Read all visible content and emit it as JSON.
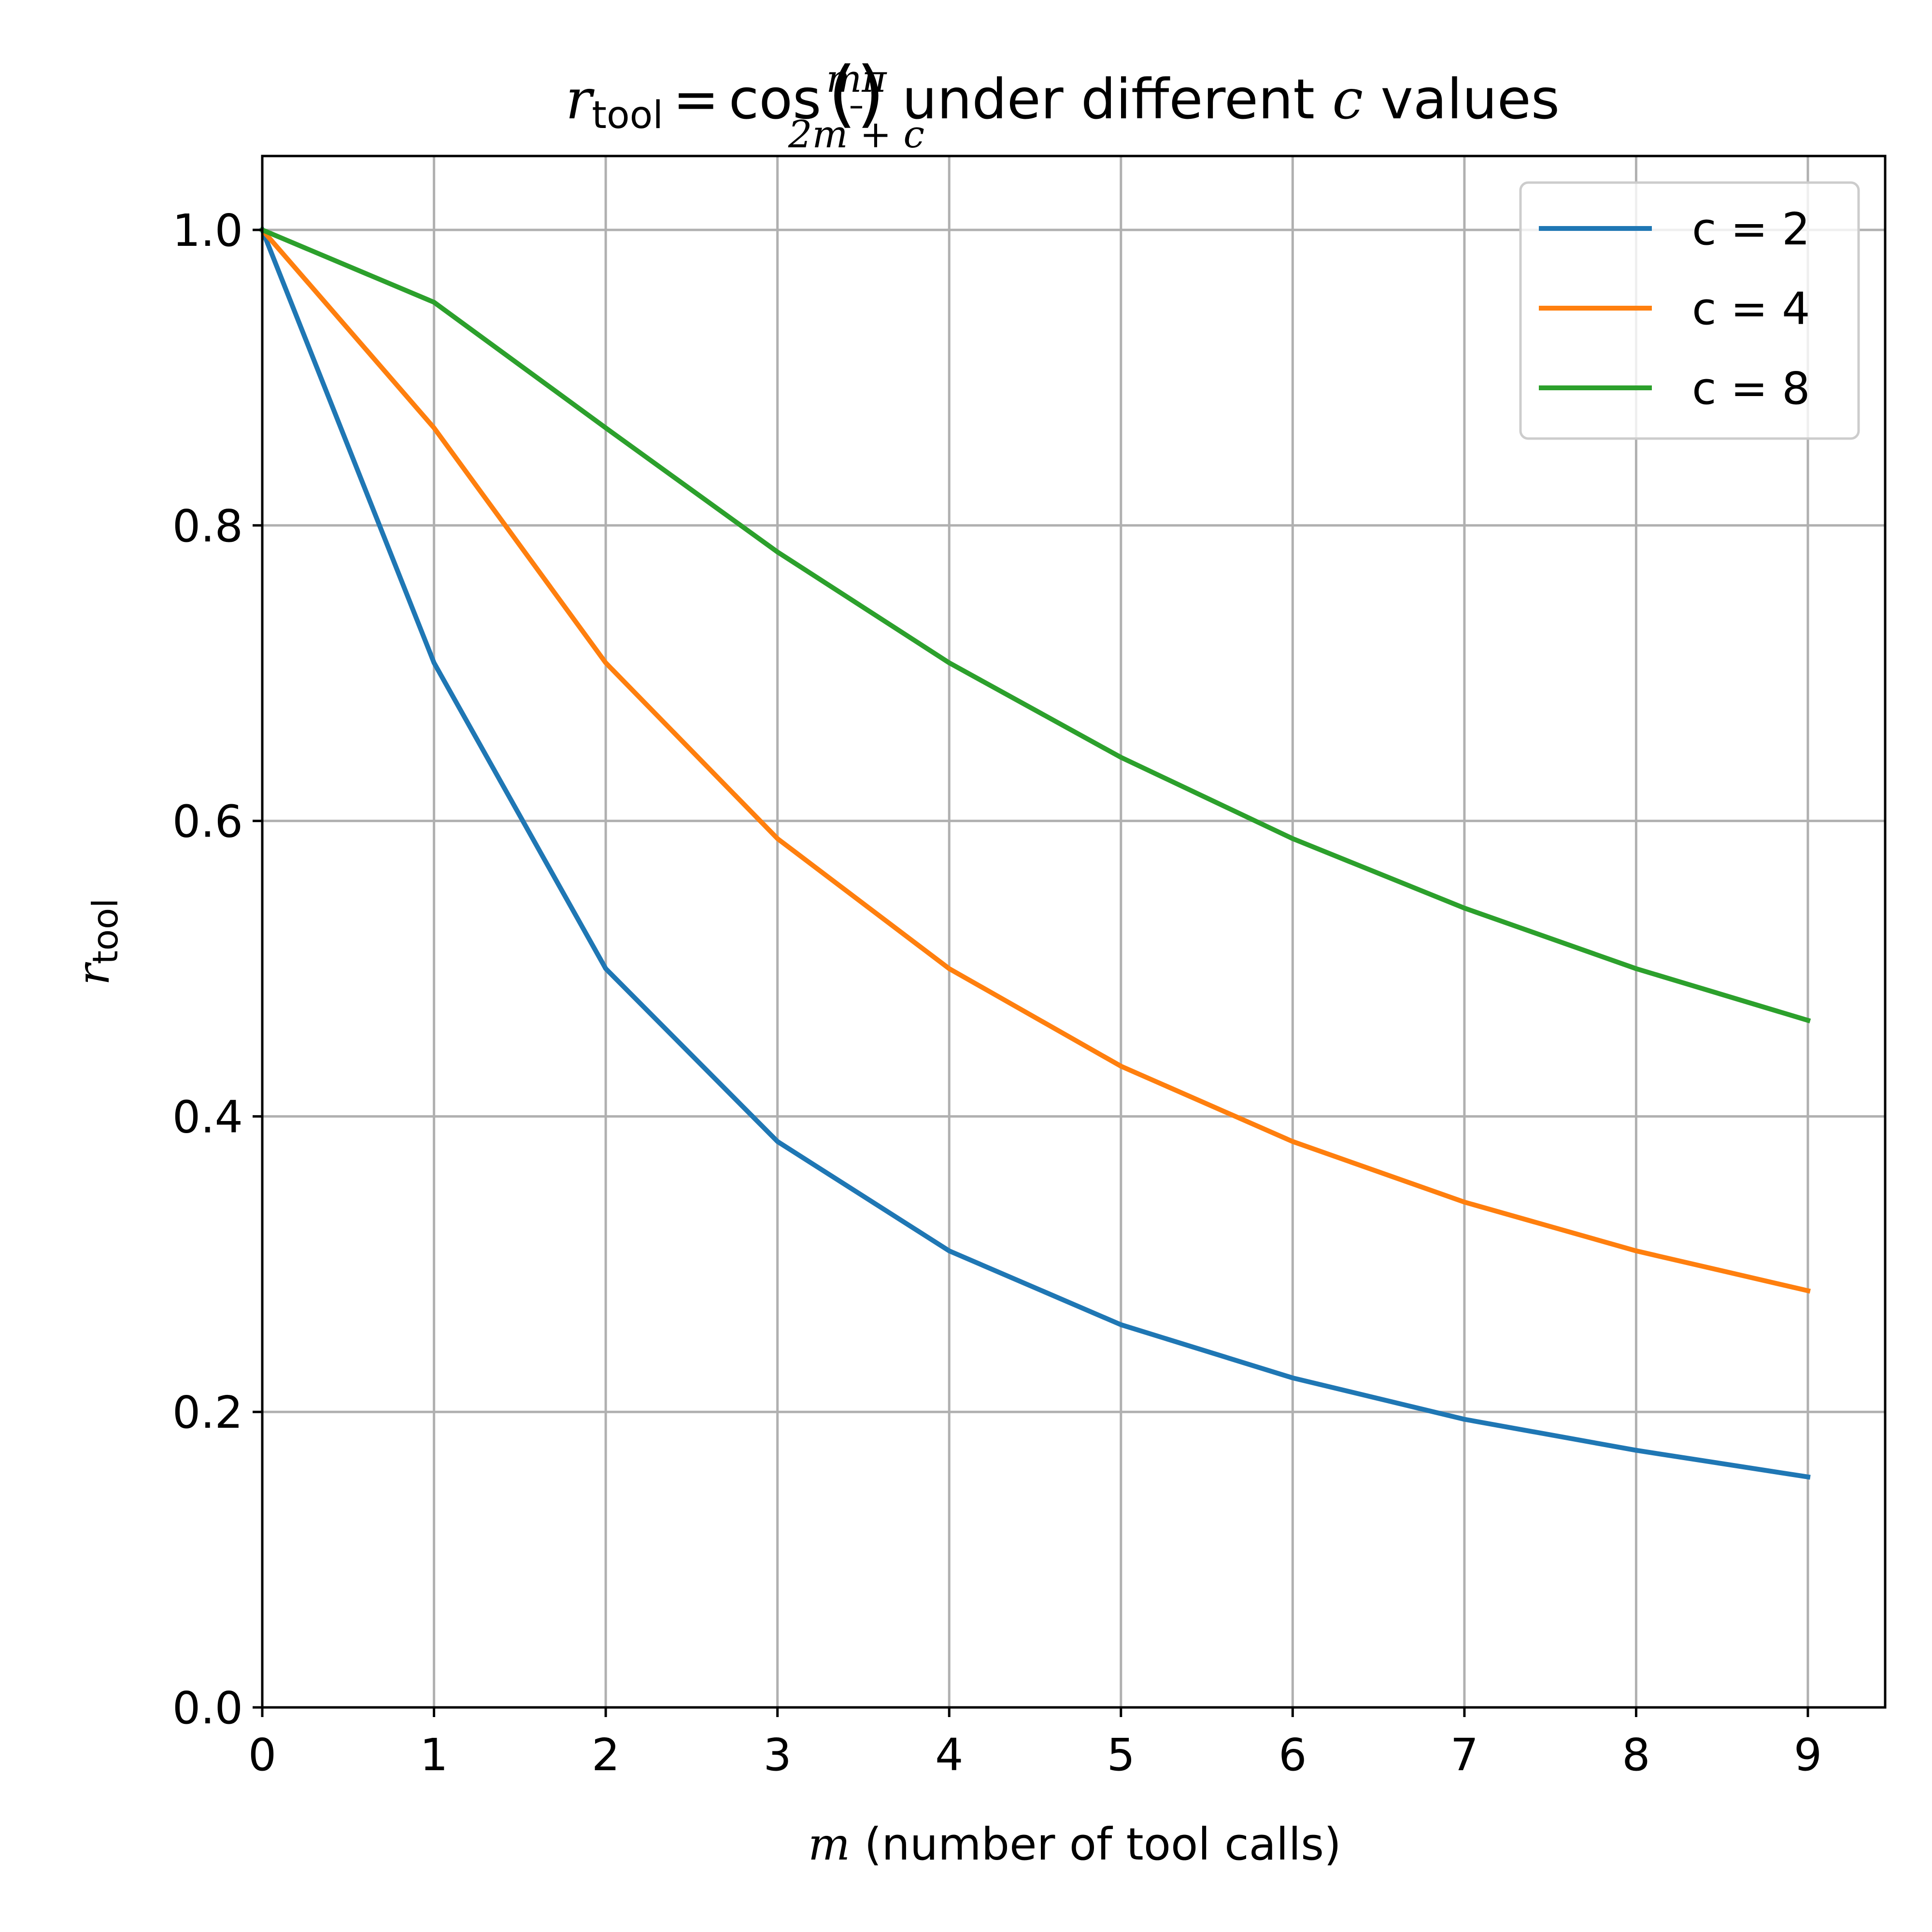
{
  "chart_data": {
    "type": "line",
    "title": {
      "lhs_var": "r",
      "lhs_sub": "tool",
      "eq": "=",
      "func": "cos",
      "open_paren": "(",
      "close_paren": ")",
      "frac_num": "mπ",
      "frac_den": "2m + c",
      "rest_prefix": " under different ",
      "rest_var": "c",
      "rest_suffix": " values"
    },
    "xlabel": {
      "var": "m",
      "text": " (number of tool calls)"
    },
    "ylabel": {
      "var": "r",
      "sub": "tool"
    },
    "x": [
      0,
      1,
      2,
      3,
      4,
      5,
      6,
      7,
      8,
      9
    ],
    "xlim": [
      0,
      9.45
    ],
    "ylim": [
      0,
      1.05
    ],
    "x_ticks": [
      "0",
      "1",
      "2",
      "3",
      "4",
      "5",
      "6",
      "7",
      "8",
      "9"
    ],
    "y_ticks": [
      "0.0",
      "0.2",
      "0.4",
      "0.6",
      "0.8",
      "1.0"
    ],
    "y_tick_values": [
      0,
      0.2,
      0.4,
      0.6,
      0.8,
      1.0
    ],
    "grid": true,
    "legend_position": "top-right",
    "series": [
      {
        "name": "c = 2",
        "color": "#1f77b4",
        "values": [
          1.0,
          0.707,
          0.5,
          0.383,
          0.309,
          0.259,
          0.223,
          0.195,
          0.174,
          0.156
        ]
      },
      {
        "name": "c = 4",
        "color": "#ff7f0e",
        "values": [
          1.0,
          0.866,
          0.707,
          0.588,
          0.5,
          0.434,
          0.383,
          0.342,
          0.309,
          0.282
        ]
      },
      {
        "name": "c = 8",
        "color": "#2ca02c",
        "values": [
          1.0,
          0.951,
          0.866,
          0.782,
          0.707,
          0.643,
          0.588,
          0.541,
          0.5,
          0.465
        ]
      }
    ]
  }
}
